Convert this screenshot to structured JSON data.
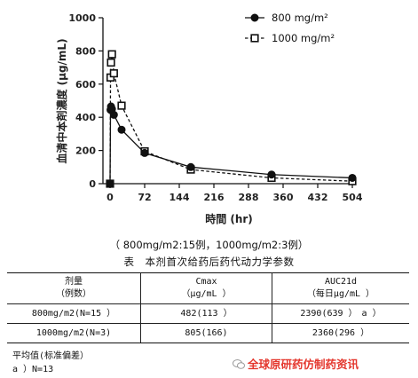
{
  "chart_data": {
    "type": "line",
    "xlabel": "時間 (hr)",
    "ylabel": "血清中本剤濃度 (μg/mL)",
    "xlim": [
      0,
      504
    ],
    "ylim": [
      0,
      1000
    ],
    "xticks": [
      0,
      72,
      144,
      216,
      288,
      360,
      432,
      504
    ],
    "yticks": [
      0,
      200,
      400,
      600,
      800,
      1000
    ],
    "legend_position": "top-right",
    "series": [
      {
        "name": "800 mg/m²",
        "marker": "filled-circle",
        "line_style": "solid",
        "color": "#111111",
        "x": [
          0,
          1,
          2,
          4,
          8,
          24,
          72,
          168,
          336,
          504
        ],
        "y": [
          0,
          445,
          465,
          450,
          415,
          325,
          185,
          100,
          55,
          35
        ]
      },
      {
        "name": "1000 mg/m²",
        "marker": "open-square",
        "line_style": "dashed",
        "color": "#111111",
        "x": [
          0,
          1,
          2,
          4,
          8,
          24,
          72,
          168,
          336,
          504
        ],
        "y": [
          0,
          640,
          730,
          780,
          665,
          470,
          195,
          85,
          35,
          15
        ]
      }
    ]
  },
  "table": {
    "caption": "（ 800mg/m2:15例，1000mg/m2:3例）",
    "title": "表　本剂首次给药后药代动力学参数",
    "headers": [
      [
        "剂量",
        "（例数）"
      ],
      [
        "Cmax",
        "（μg/mL ）"
      ],
      [
        "AUC21d",
        "（每日μg/mL ）"
      ]
    ],
    "rows": [
      [
        "800mg/m2(N=15 ）",
        "482(113 ）",
        "2390(639 ）　a ）"
      ],
      [
        "1000mg/m2(N=3)",
        "805(166)",
        "2360(296 ）"
      ]
    ]
  },
  "footnotes": {
    "mean_sd": "平均值(标准偏差）",
    "a_note": "a ）N=13"
  },
  "watermark": {
    "text": "全球原研药仿制药资讯",
    "color": "#e4372e"
  }
}
